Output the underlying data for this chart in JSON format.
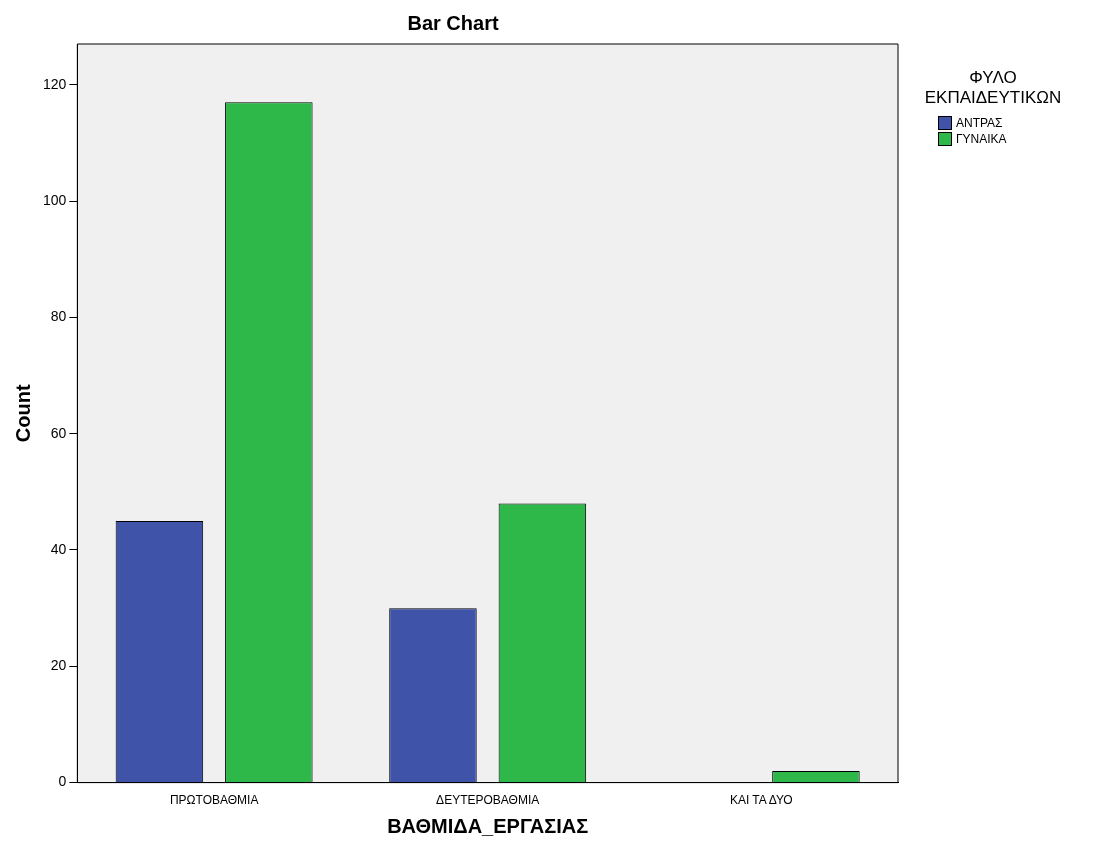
{
  "chart_data": {
    "type": "bar",
    "title": "Bar Chart",
    "xlabel": "ΒΑΘΜΙΔΑ_ΕΡΓΑΣΙΑΣ",
    "ylabel": "Count",
    "legend_title": "ΦΥΛΟ ΕΚΠΑΙΔΕΥΤΙΚΩΝ",
    "categories": [
      "ΠΡΩΤΟΒΑΘΜΙΑ",
      "ΔΕΥΤΕΡΟΒΑΘΜΙΑ",
      "ΚΑΙ ΤΑ ΔΥΟ"
    ],
    "series": [
      {
        "name": "ΑΝΤΡΑΣ",
        "color": "#3f54a8",
        "values": [
          45,
          30,
          0
        ]
      },
      {
        "name": "ΓΥΝΑΙΚΑ",
        "color": "#2eb84a",
        "values": [
          117,
          48,
          2
        ]
      }
    ],
    "ylim": [
      0,
      127
    ],
    "yticks": [
      0,
      20,
      40,
      60,
      80,
      100,
      120
    ],
    "grid": false,
    "legend": "top right"
  }
}
